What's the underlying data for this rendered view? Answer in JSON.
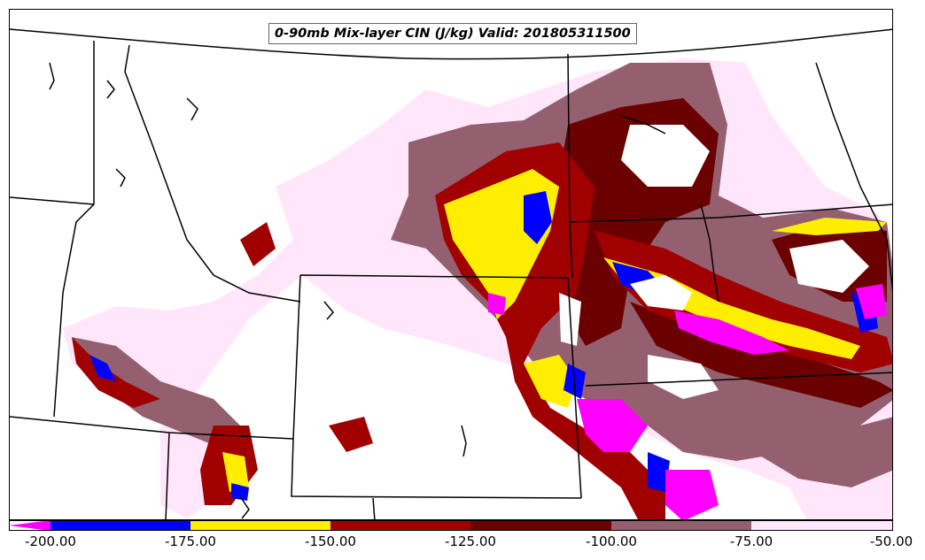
{
  "title": "0-90mb Mix-layer CIN (J/kg) Valid: 201805311500",
  "colors": {
    "lt_neg200": "#ff00ff",
    "neg200_neg175": "#0000ff",
    "neg175_neg150": "#ffee00",
    "neg150_neg125": "#a00000",
    "neg125_neg100": "#6b0000",
    "neg100_neg75": "#946070",
    "neg75_neg50": "#ffe6fa"
  },
  "legend": {
    "ticks": [
      "-200.00",
      "-175.00",
      "-150.00",
      "-125.00",
      "-100.00",
      "-75.00",
      "-50.00"
    ],
    "bins": [
      {
        "color": "#ff00ff"
      },
      {
        "color": "#0000ff"
      },
      {
        "color": "#ffee00"
      },
      {
        "color": "#a00000"
      },
      {
        "color": "#6b0000"
      },
      {
        "color": "#946070"
      },
      {
        "color": "#ffe6fa"
      }
    ]
  }
}
